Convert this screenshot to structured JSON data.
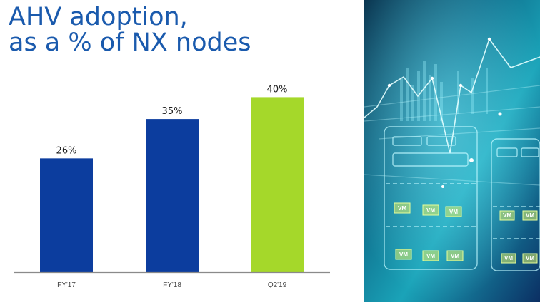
{
  "title": {
    "line1": "AHV adoption,",
    "line2": "as a % of NX nodes"
  },
  "colors": {
    "title": "#1a5aad",
    "bar_primary": "#0c3d9e",
    "bar_highlight": "#a5d82a",
    "axis": "#8a8a8a"
  },
  "chart_data": {
    "type": "bar",
    "categories": [
      "FY'17",
      "FY'18",
      "Q2'19"
    ],
    "values": [
      26,
      35,
      40
    ],
    "data_labels": [
      "26%",
      "35%",
      "40%"
    ],
    "highlight": [
      "",
      "",
      "Q2'19"
    ],
    "ylim": [
      0,
      50
    ],
    "grid": false
  },
  "side_image": {
    "vm_label": "VM",
    "description_icon": "server-racks-with-vm-tiles"
  }
}
